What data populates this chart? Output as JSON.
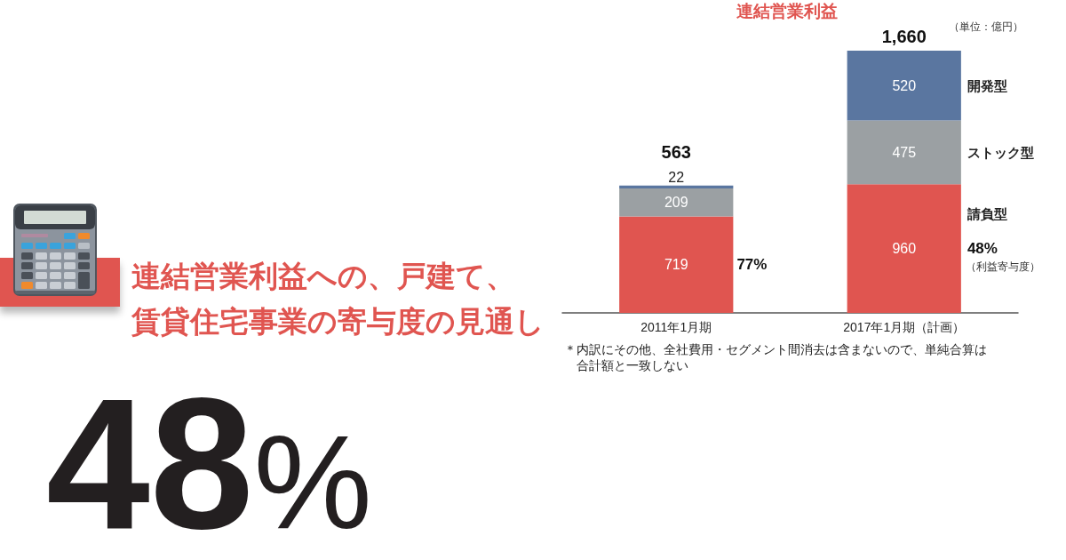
{
  "chart_data": {
    "type": "bar",
    "title": "連結営業利益への、戸建て、賃貸住宅事業の寄与度の見通し",
    "subtitle": "連結営業利益",
    "categories": [
      "2011年1月期",
      "2017年1月期（計画）"
    ],
    "series": [
      {
        "name": "請負型",
        "color": "#e05550",
        "values": [
          719,
          960
        ]
      },
      {
        "name": "ストック型",
        "color": "#9ba0a3",
        "values": [
          209,
          475
        ]
      },
      {
        "name": "開発型",
        "color": "#5a76a0",
        "values": [
          22,
          520
        ]
      }
    ],
    "stacked": true,
    "data_labels": true,
    "tick_labels": "x",
    "annotations": [
      "（単位：億円）",
      "563",
      "1,660",
      "77%",
      "48%",
      "（利益寄与度）",
      "＊内訳にその他、全社費用・セグメント間消去は含まないので、単純合算は合計額と一致しない",
      "48%"
    ]
  }
}
